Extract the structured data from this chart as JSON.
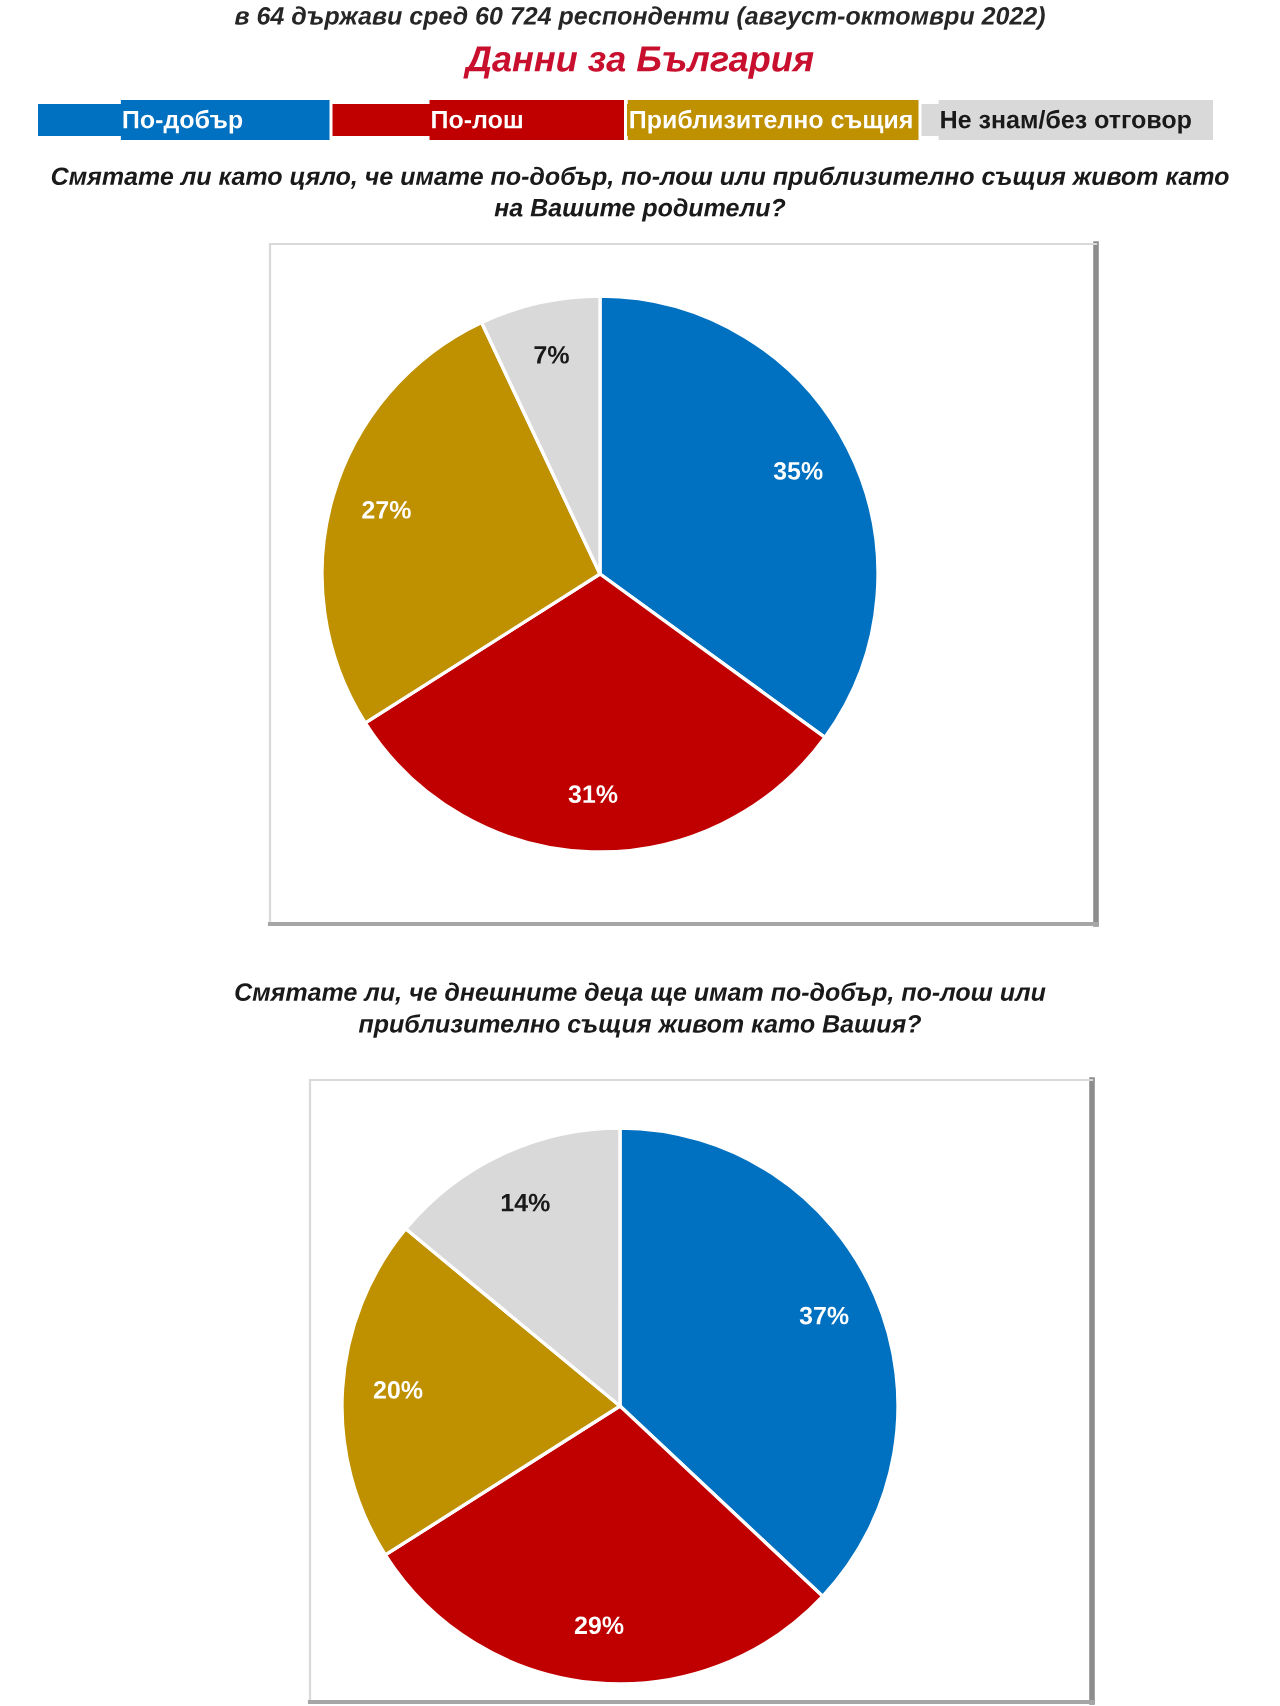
{
  "chart_data": [
    {
      "type": "pie",
      "title": "Данни за България",
      "subtitle": "Смятате ли като цяло, че имате по-добър, по-лош или приблизително същия живот като\nна Вашите родители?",
      "annotations": [
        "в 64 държави сред 60 724 респонденти (август-октомври 2022)"
      ],
      "categories": [
        "По-добър",
        "По-лош",
        "Приблизително същия",
        "Не знам/без отговор"
      ],
      "values": [
        35,
        31,
        27,
        7
      ],
      "colors": [
        "#0070c0",
        "#c00000",
        "#bf9000",
        "#d9d9d9"
      ],
      "value_labels": [
        "35%",
        "31%",
        "27%",
        "7%"
      ],
      "legend": "top"
    },
    {
      "type": "pie",
      "subtitle": "Смятате ли, че днешните деца ще имат по-добър, по-лош или\nприблизително същия живот като Вашия?",
      "categories": [
        null,
        null,
        null,
        null
      ],
      "values": [
        37,
        29,
        20,
        14
      ],
      "colors": [
        "#0070c0",
        "#c00000",
        "#bf9000",
        "#d9d9d9"
      ],
      "value_labels": [
        "37%",
        "29%",
        "20%",
        "14%"
      ]
    }
  ]
}
